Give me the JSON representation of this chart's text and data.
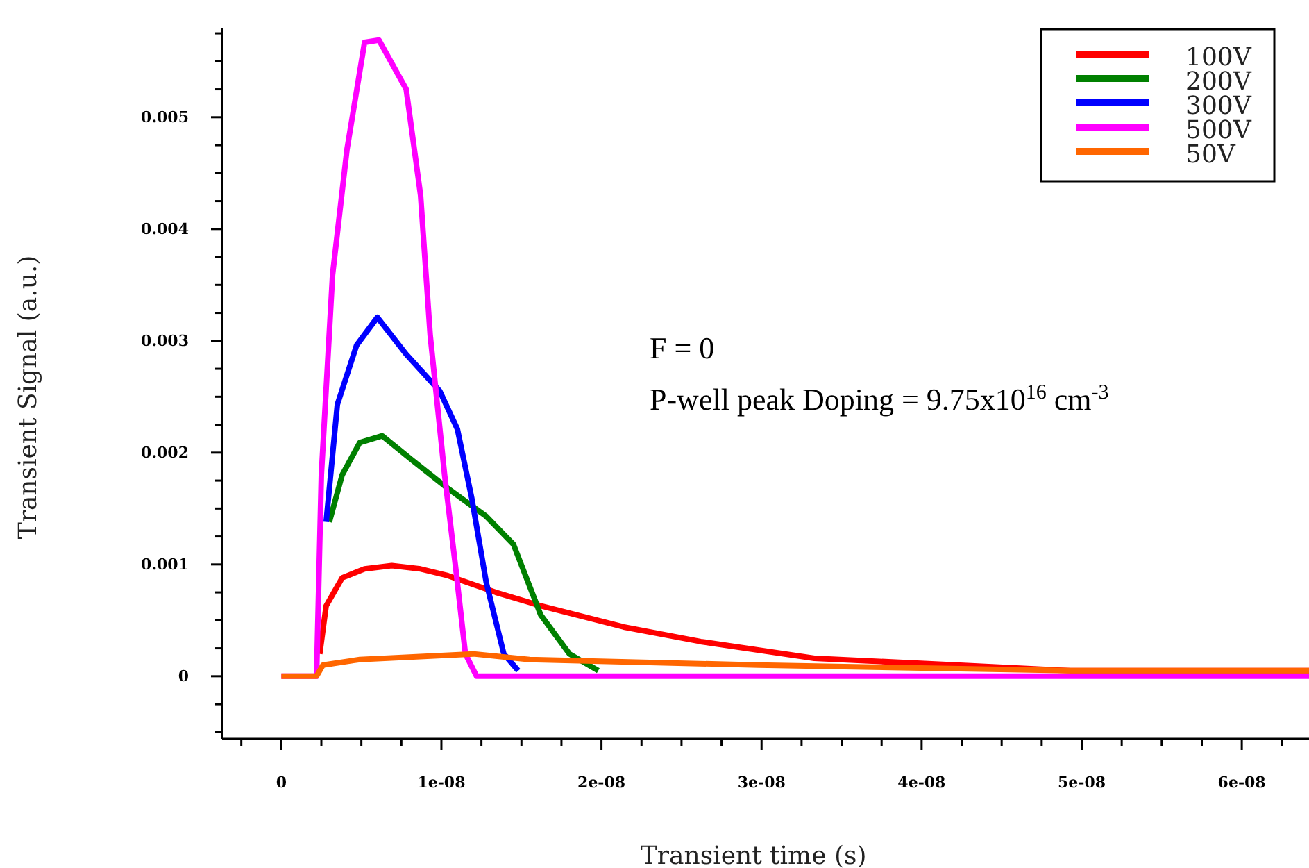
{
  "chart_data": {
    "type": "line",
    "xlabel": "Transient time (s)",
    "ylabel": "Transient Signal (a.u.)",
    "xlim": [
      -3.7e-09,
      6.42e-08
    ],
    "ylim": [
      -0.00056,
      0.0058
    ],
    "xticks": [
      {
        "value": -2.5e-09,
        "label": null
      },
      0,
      {
        "value": 2.5e-09,
        "label": null
      },
      {
        "value": 5e-09,
        "label": null
      },
      {
        "value": 7.5e-09,
        "label": null
      },
      {
        "value": 1e-08,
        "label": "1e-08"
      },
      {
        "value": 1.25e-08,
        "label": null
      },
      {
        "value": 1.5e-08,
        "label": null
      },
      {
        "value": 1.75e-08,
        "label": null
      },
      {
        "value": 2e-08,
        "label": "2e-08"
      },
      {
        "value": 2.25e-08,
        "label": null
      },
      {
        "value": 2.5e-08,
        "label": null
      },
      {
        "value": 2.75e-08,
        "label": null
      },
      {
        "value": 3e-08,
        "label": "3e-08"
      },
      {
        "value": 3.25e-08,
        "label": null
      },
      {
        "value": 3.5e-08,
        "label": null
      },
      {
        "value": 3.75e-08,
        "label": null
      },
      {
        "value": 4e-08,
        "label": "4e-08"
      },
      {
        "value": 4.25e-08,
        "label": null
      },
      {
        "value": 4.5e-08,
        "label": null
      },
      {
        "value": 4.75e-08,
        "label": null
      },
      {
        "value": 5e-08,
        "label": "5e-08"
      },
      {
        "value": 5.25e-08,
        "label": null
      },
      {
        "value": 5.5e-08,
        "label": null
      },
      {
        "value": 5.75e-08,
        "label": null
      },
      {
        "value": 6e-08,
        "label": "6e-08"
      },
      {
        "value": 6.25e-08,
        "label": null
      }
    ],
    "yticks": [
      {
        "value": -0.0005,
        "label": null
      },
      {
        "value": -0.00025,
        "label": null
      },
      0,
      {
        "value": 0.00025,
        "label": null
      },
      {
        "value": 0.0005,
        "label": null
      },
      {
        "value": 0.00075,
        "label": null
      },
      0.001,
      {
        "value": 0.00125,
        "label": null
      },
      {
        "value": 0.0015,
        "label": null
      },
      {
        "value": 0.00175,
        "label": null
      },
      0.002,
      {
        "value": 0.00225,
        "label": null
      },
      {
        "value": 0.0025,
        "label": null
      },
      {
        "value": 0.00275,
        "label": null
      },
      0.003,
      {
        "value": 0.00325,
        "label": null
      },
      {
        "value": 0.0035,
        "label": null
      },
      {
        "value": 0.00375,
        "label": null
      },
      0.004,
      {
        "value": 0.00425,
        "label": null
      },
      {
        "value": 0.0045,
        "label": null
      },
      {
        "value": 0.00475,
        "label": null
      },
      0.005,
      {
        "value": 0.00525,
        "label": null
      },
      {
        "value": 0.0055,
        "label": null
      },
      {
        "value": 0.00575,
        "label": null
      }
    ],
    "legend": "top right",
    "grid": false,
    "line_style": "solid",
    "marker": "none",
    "annotations": [
      "F = 0",
      "P-well peak Doping = 9.75x10$^{16}$ cm$^{-3}$"
    ],
    "series": [
      {
        "name": "100V",
        "color": "#ff0000",
        "x": [
          2.4e-09,
          2.8e-09,
          3.8e-09,
          5.2e-09,
          6.9e-09,
          8.7e-09,
          1.04e-08,
          1.34e-08,
          1.62e-08,
          2.14e-08,
          2.62e-08,
          3.33e-08,
          4.22e-08,
          4.93e-08,
          6.42e-08
        ],
        "values": [
          0.0002,
          0.00063,
          0.00088,
          0.00096,
          0.00099,
          0.00096,
          0.0009,
          0.00075,
          0.00063,
          0.00044,
          0.00031,
          0.00016,
          0.0001,
          5e-05,
          5e-05
        ]
      },
      {
        "name": "200V",
        "color": "#008000",
        "x": [
          3e-09,
          3.8e-09,
          4.9e-09,
          6.3e-09,
          8.2e-09,
          1.04e-08,
          1.28e-08,
          1.45e-08,
          1.62e-08,
          1.8e-08,
          1.98e-08
        ],
        "values": [
          0.00138,
          0.0018,
          0.00209,
          0.00215,
          0.00193,
          0.00168,
          0.00143,
          0.00118,
          0.00055,
          0.0002,
          5e-05
        ]
      },
      {
        "name": "300V",
        "color": "#0000ff",
        "x": [
          2.8e-09,
          3.5e-09,
          4.7e-09,
          6e-09,
          7.8e-09,
          9.9e-09,
          1.1e-08,
          1.19e-08,
          1.28e-08,
          1.39e-08,
          1.48e-08
        ],
        "values": [
          0.00138,
          0.00243,
          0.00296,
          0.00321,
          0.00288,
          0.00255,
          0.00221,
          0.00159,
          0.00084,
          0.0002,
          5e-05
        ]
      },
      {
        "name": "500V",
        "color": "#ff00ff",
        "x": [
          0,
          2.2e-09,
          2.5e-09,
          3.2e-09,
          4.1e-09,
          5.2e-09,
          6.1e-09,
          7.8e-09,
          8.7e-09,
          9.3e-09,
          1.02e-08,
          1.09e-08,
          1.15e-08,
          1.22e-08,
          6.42e-08
        ],
        "values": [
          0,
          0,
          0.0018,
          0.00359,
          0.00471,
          0.00567,
          0.00569,
          0.00525,
          0.0043,
          0.00305,
          0.0018,
          0.00096,
          0.0002,
          0,
          0
        ]
      },
      {
        "name": "50V",
        "color": "#ff6600",
        "x": [
          0,
          2.2e-09,
          2.6e-09,
          4.9e-09,
          1.2e-08,
          1.55e-08,
          2.98e-08,
          4.93e-08,
          6.42e-08
        ],
        "values": [
          0,
          0,
          0.0001,
          0.00015,
          0.0002,
          0.00015,
          0.0001,
          5e-05,
          5e-05
        ]
      }
    ]
  }
}
